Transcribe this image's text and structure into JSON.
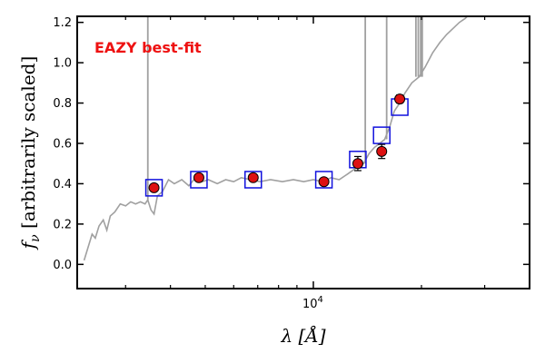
{
  "chart_data": {
    "type": "scatter",
    "title": "",
    "xlabel": "λ [Å]",
    "ylabel_main": "f",
    "ylabel_sub": "ν",
    "ylabel_rest": " [arbitrarily scaled]",
    "x_tick_label": "10",
    "x_tick_exp": "4",
    "x_tick_value": 10000,
    "xscale": "log",
    "xlim": [
      2200,
      40000
    ],
    "ylim": [
      -0.12,
      1.23
    ],
    "y_ticks": [
      0.0,
      0.2,
      0.4,
      0.6,
      0.8,
      1.0,
      1.2
    ],
    "y_tick_labels": [
      "0.0",
      "0.2",
      "0.4",
      "0.6",
      "0.8",
      "1.0",
      "1.2"
    ],
    "x_minor_ticks": [
      3000,
      4000,
      5000,
      6000,
      7000,
      8000,
      9000,
      20000,
      30000
    ],
    "grid": false,
    "annotation": "EAZY best-fit",
    "annotation_color": "#ee1111",
    "series": [
      {
        "kind": "observed",
        "color": "#dd1111",
        "edge_color": "#000000",
        "points": [
          {
            "x": 3600,
            "y": 0.38,
            "err": 0.01
          },
          {
            "x": 4800,
            "y": 0.43,
            "err": 0.01
          },
          {
            "x": 6800,
            "y": 0.43,
            "err": 0.01
          },
          {
            "x": 10700,
            "y": 0.41,
            "err": 0.015
          },
          {
            "x": 13300,
            "y": 0.5,
            "err": 0.035
          },
          {
            "x": 15500,
            "y": 0.56,
            "err": 0.035
          },
          {
            "x": 17400,
            "y": 0.82,
            "err": 0.02
          }
        ]
      },
      {
        "kind": "model",
        "color": "#1111dd",
        "points": [
          {
            "x": 3600,
            "y": 0.38
          },
          {
            "x": 4800,
            "y": 0.42
          },
          {
            "x": 6800,
            "y": 0.42
          },
          {
            "x": 10700,
            "y": 0.42
          },
          {
            "x": 13300,
            "y": 0.52
          },
          {
            "x": 15500,
            "y": 0.64
          },
          {
            "x": 17400,
            "y": 0.78
          }
        ]
      },
      {
        "kind": "sed",
        "color": "#a0a0a0",
        "points": [
          [
            2300,
            0.02
          ],
          [
            2420,
            0.15
          ],
          [
            2470,
            0.13
          ],
          [
            2530,
            0.19
          ],
          [
            2600,
            0.22
          ],
          [
            2660,
            0.17
          ],
          [
            2720,
            0.24
          ],
          [
            2800,
            0.26
          ],
          [
            2900,
            0.3
          ],
          [
            3000,
            0.29
          ],
          [
            3100,
            0.31
          ],
          [
            3200,
            0.3
          ],
          [
            3300,
            0.31
          ],
          [
            3400,
            0.3
          ],
          [
            3460,
            0.32
          ],
          [
            3530,
            0.27
          ],
          [
            3600,
            0.25
          ],
          [
            3680,
            0.34
          ],
          [
            3800,
            0.36
          ],
          [
            3950,
            0.42
          ],
          [
            4100,
            0.4
          ],
          [
            4300,
            0.42
          ],
          [
            4500,
            0.39
          ],
          [
            4700,
            0.43
          ],
          [
            4900,
            0.41
          ],
          [
            5100,
            0.42
          ],
          [
            5400,
            0.4
          ],
          [
            5700,
            0.42
          ],
          [
            6000,
            0.41
          ],
          [
            6300,
            0.43
          ],
          [
            6700,
            0.42
          ],
          [
            7100,
            0.41
          ],
          [
            7600,
            0.42
          ],
          [
            8200,
            0.41
          ],
          [
            8800,
            0.42
          ],
          [
            9400,
            0.41
          ],
          [
            10000,
            0.42
          ],
          [
            10600,
            0.41
          ],
          [
            11200,
            0.43
          ],
          [
            11800,
            0.42
          ],
          [
            12500,
            0.45
          ],
          [
            13200,
            0.48
          ],
          [
            13800,
            0.5
          ],
          [
            14300,
            0.55
          ],
          [
            14800,
            0.58
          ],
          [
            15300,
            0.6
          ],
          [
            15800,
            0.62
          ],
          [
            16300,
            0.68
          ],
          [
            16800,
            0.76
          ],
          [
            17400,
            0.8
          ],
          [
            18000,
            0.85
          ],
          [
            18800,
            0.9
          ],
          [
            19700,
            0.93
          ],
          [
            20500,
            0.98
          ],
          [
            21500,
            1.05
          ],
          [
            22500,
            1.1
          ],
          [
            23500,
            1.14
          ],
          [
            24500,
            1.17
          ],
          [
            25500,
            1.2
          ],
          [
            26500,
            1.22
          ],
          [
            27500,
            1.25
          ]
        ],
        "lines": [
          {
            "x": 3460,
            "y": 1.23
          },
          {
            "x": 13950,
            "y": 1.23
          },
          {
            "x": 16000,
            "y": 1.23
          },
          {
            "x": 19300,
            "y": 1.23
          },
          {
            "x": 19600,
            "y": 1.23
          },
          {
            "x": 19900,
            "y": 1.23
          },
          {
            "x": 20100,
            "y": 1.23
          }
        ]
      }
    ]
  }
}
